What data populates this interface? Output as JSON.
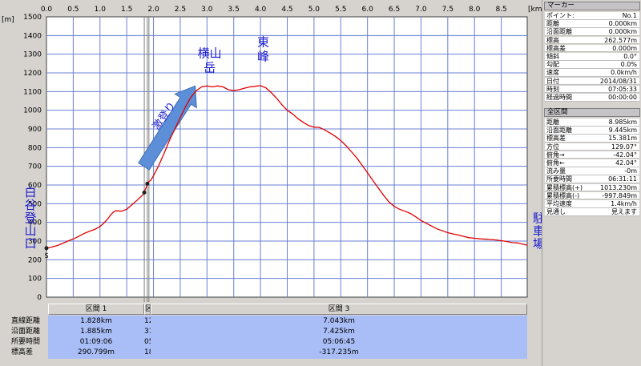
{
  "chart_data": {
    "type": "line",
    "x_unit": "[km]",
    "y_unit": "[m]",
    "xlim": [
      0,
      8.985
    ],
    "ylim": [
      0,
      1500
    ],
    "x_ticks": [
      "0.0",
      "0.5",
      "1.0",
      "1.5",
      "2.0",
      "2.5",
      "3.0",
      "3.5",
      "4.0",
      "4.5",
      "5.0",
      "5.5",
      "6.0",
      "6.5",
      "7.0",
      "7.5",
      "8.0",
      "8.5"
    ],
    "y_ticks": [
      "0",
      "100",
      "200",
      "300",
      "400",
      "500",
      "600",
      "700",
      "800",
      "900",
      "1000",
      "1100",
      "1200",
      "1300",
      "1400",
      "1500"
    ],
    "grid": true,
    "series": [
      {
        "color": "#e00000",
        "points": [
          [
            0.0,
            262
          ],
          [
            0.1,
            268
          ],
          [
            0.2,
            276
          ],
          [
            0.3,
            287
          ],
          [
            0.4,
            300
          ],
          [
            0.5,
            311
          ],
          [
            0.6,
            325
          ],
          [
            0.7,
            340
          ],
          [
            0.8,
            352
          ],
          [
            0.9,
            362
          ],
          [
            1.0,
            378
          ],
          [
            1.05,
            390
          ],
          [
            1.1,
            405
          ],
          [
            1.15,
            420
          ],
          [
            1.2,
            440
          ],
          [
            1.25,
            455
          ],
          [
            1.3,
            462
          ],
          [
            1.4,
            460
          ],
          [
            1.5,
            470
          ],
          [
            1.6,
            495
          ],
          [
            1.7,
            520
          ],
          [
            1.8,
            547
          ],
          [
            1.83,
            565
          ],
          [
            1.86,
            585
          ],
          [
            1.88,
            600
          ],
          [
            1.9,
            615
          ],
          [
            1.95,
            625
          ],
          [
            2.0,
            650
          ],
          [
            2.1,
            705
          ],
          [
            2.2,
            770
          ],
          [
            2.3,
            840
          ],
          [
            2.4,
            900
          ],
          [
            2.5,
            960
          ],
          [
            2.6,
            1020
          ],
          [
            2.7,
            1070
          ],
          [
            2.8,
            1105
          ],
          [
            2.9,
            1125
          ],
          [
            3.0,
            1130
          ],
          [
            3.1,
            1125
          ],
          [
            3.2,
            1130
          ],
          [
            3.3,
            1125
          ],
          [
            3.4,
            1110
          ],
          [
            3.5,
            1105
          ],
          [
            3.6,
            1110
          ],
          [
            3.7,
            1118
          ],
          [
            3.8,
            1125
          ],
          [
            3.9,
            1128
          ],
          [
            4.0,
            1132
          ],
          [
            4.1,
            1120
          ],
          [
            4.2,
            1095
          ],
          [
            4.3,
            1065
          ],
          [
            4.4,
            1030
          ],
          [
            4.5,
            1000
          ],
          [
            4.6,
            980
          ],
          [
            4.7,
            955
          ],
          [
            4.8,
            935
          ],
          [
            4.9,
            918
          ],
          [
            5.0,
            910
          ],
          [
            5.1,
            908
          ],
          [
            5.2,
            895
          ],
          [
            5.3,
            878
          ],
          [
            5.4,
            860
          ],
          [
            5.5,
            838
          ],
          [
            5.6,
            810
          ],
          [
            5.7,
            778
          ],
          [
            5.8,
            745
          ],
          [
            5.9,
            705
          ],
          [
            6.0,
            665
          ],
          [
            6.1,
            625
          ],
          [
            6.2,
            585
          ],
          [
            6.3,
            545
          ],
          [
            6.4,
            510
          ],
          [
            6.5,
            485
          ],
          [
            6.6,
            470
          ],
          [
            6.7,
            460
          ],
          [
            6.8,
            448
          ],
          [
            6.9,
            430
          ],
          [
            7.0,
            410
          ],
          [
            7.1,
            395
          ],
          [
            7.2,
            380
          ],
          [
            7.3,
            365
          ],
          [
            7.4,
            355
          ],
          [
            7.5,
            345
          ],
          [
            7.6,
            338
          ],
          [
            7.7,
            332
          ],
          [
            7.8,
            325
          ],
          [
            7.9,
            318
          ],
          [
            8.0,
            315
          ],
          [
            8.1,
            312
          ],
          [
            8.2,
            310
          ],
          [
            8.3,
            308
          ],
          [
            8.4,
            306
          ],
          [
            8.5,
            302
          ],
          [
            8.6,
            298
          ],
          [
            8.7,
            292
          ],
          [
            8.8,
            290
          ],
          [
            8.985,
            278
          ]
        ]
      }
    ],
    "markers": [
      {
        "x": 0.0,
        "y": 262,
        "label": "S"
      },
      {
        "x": 1.828,
        "y": 560
      },
      {
        "x": 1.885,
        "y": 607
      }
    ],
    "annotations": [
      {
        "text": "白谷登山口",
        "x": -0.3,
        "y": 420,
        "orient": "vertical"
      },
      {
        "text": "横山岳",
        "x": 3.05,
        "y": 1250,
        "orient": "horizontal"
      },
      {
        "text": "東峰",
        "x": 4.05,
        "y": 1310,
        "orient": "horizontal"
      },
      {
        "text": "駐車場",
        "x": 9.2,
        "y": 350,
        "orient": "vertical"
      },
      {
        "text": "激登り",
        "x": 2.25,
        "y": 960,
        "orient": "diagonal"
      }
    ],
    "segment_lines_x": [
      1.828,
      1.885,
      1.915
    ]
  },
  "segments": {
    "row_labels": [
      "直線距離",
      "沿面距離",
      "所要時間",
      "標高差"
    ],
    "columns": [
      {
        "header": "区間 1",
        "values": [
          "1.828km",
          "1.885km",
          "01:09:06",
          "290.799m"
        ]
      },
      {
        "header": "区",
        "values": [
          "12",
          "31",
          "05",
          "18"
        ]
      },
      {
        "header": "区間 3",
        "values": [
          "7.043km",
          "7.425km",
          "05:06:45",
          "-317.235m"
        ]
      }
    ]
  },
  "marker_panel": {
    "title": "マーカー",
    "rows": [
      {
        "k": "ポイント:",
        "v": "No.1"
      },
      {
        "k": "距離",
        "v": "0.000km"
      },
      {
        "k": "沿面距離",
        "v": "0.000km"
      },
      {
        "k": "標高",
        "v": "262.577m"
      },
      {
        "k": "標高差",
        "v": "0.000m"
      },
      {
        "k": "傾斜",
        "v": "0.0°"
      },
      {
        "k": "勾配",
        "v": "0.0%"
      },
      {
        "k": "速度",
        "v": "0.0km/h"
      },
      {
        "k": "日付",
        "v": "2014/08/31"
      },
      {
        "k": "時刻",
        "v": "07:05:33"
      },
      {
        "k": "経過時間",
        "v": "00:00:00"
      }
    ]
  },
  "total_panel": {
    "title": "全区間",
    "rows": [
      {
        "k": "距離",
        "v": "8.985km"
      },
      {
        "k": "沿面距離",
        "v": "9.445km"
      },
      {
        "k": "標高差",
        "v": "15.381m"
      },
      {
        "k": "方位",
        "v": "129.07°"
      },
      {
        "k": "俯角→",
        "v": "-42.04°"
      },
      {
        "k": "俯角←",
        "v": "42.04°"
      },
      {
        "k": "流み量",
        "v": "-0m"
      },
      {
        "k": "所要時間",
        "v": "06:31:11"
      },
      {
        "k": "累積標高(+)",
        "v": "1013.230m"
      },
      {
        "k": "累積標高(-)",
        "v": "-997.849m"
      },
      {
        "k": "平均速度",
        "v": "1.4km/h"
      },
      {
        "k": "見通し",
        "v": "見えます"
      }
    ]
  },
  "colors": {
    "plot_bg": "#ffffff",
    "grid": "#6a7fd6",
    "line": "#e00000",
    "arrow": "#5d8fd8",
    "label_blue": "#1a1acd"
  }
}
